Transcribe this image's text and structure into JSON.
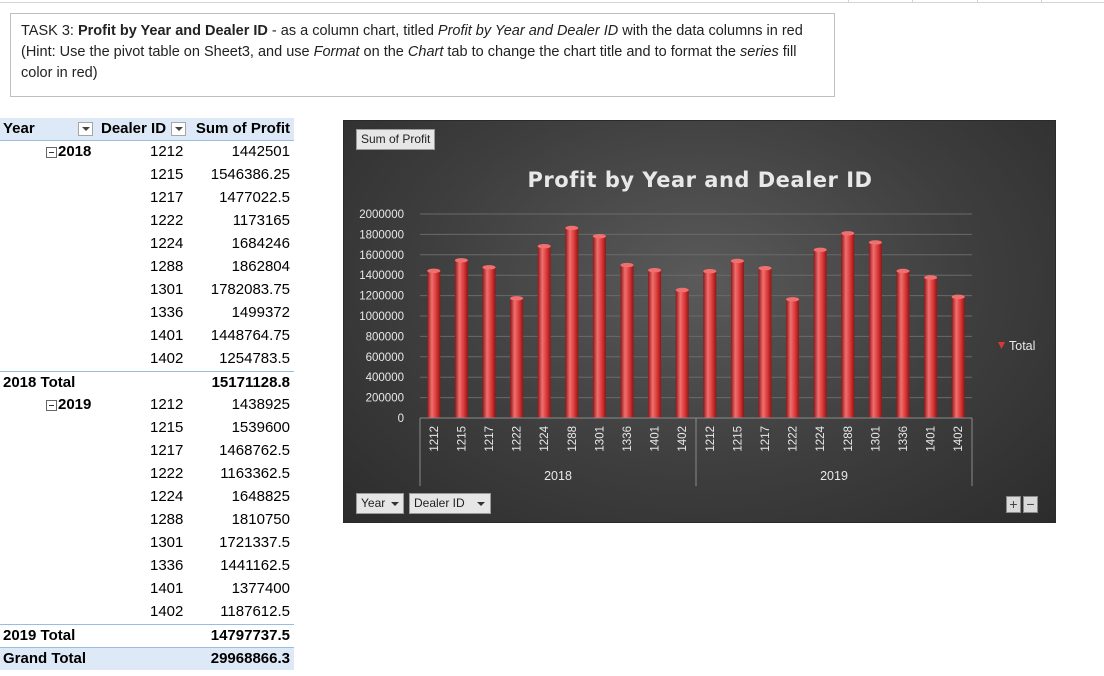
{
  "task": {
    "prefix": "TASK 3: ",
    "bold_title": "Profit by Year and Dealer ID",
    "text1": " - as a column chart, titled ",
    "italic_title": "Profit by Year and Dealer ID",
    "text2": " with the data columns in red (Hint: Use the pivot table on Sheet3, and use ",
    "italic_format": "Format",
    "text3": " on the ",
    "italic_chart": "Chart",
    "text4": " tab to change the chart title and to format the ",
    "italic_series": "series",
    "text5": " fill color in red)"
  },
  "pivot": {
    "headers": {
      "year": "Year",
      "dealer": "Dealer ID",
      "sum": "Sum of Profit"
    },
    "groups": [
      {
        "year": "2018",
        "rows": [
          {
            "id": "1212",
            "val": "1442501"
          },
          {
            "id": "1215",
            "val": "1546386.25"
          },
          {
            "id": "1217",
            "val": "1477022.5"
          },
          {
            "id": "1222",
            "val": "1173165"
          },
          {
            "id": "1224",
            "val": "1684246"
          },
          {
            "id": "1288",
            "val": "1862804"
          },
          {
            "id": "1301",
            "val": "1782083.75"
          },
          {
            "id": "1336",
            "val": "1499372"
          },
          {
            "id": "1401",
            "val": "1448764.75"
          },
          {
            "id": "1402",
            "val": "1254783.5"
          }
        ],
        "total_label": "2018 Total",
        "total_value": "15171128.8"
      },
      {
        "year": "2019",
        "rows": [
          {
            "id": "1212",
            "val": "1438925"
          },
          {
            "id": "1215",
            "val": "1539600"
          },
          {
            "id": "1217",
            "val": "1468762.5"
          },
          {
            "id": "1222",
            "val": "1163362.5"
          },
          {
            "id": "1224",
            "val": "1648825"
          },
          {
            "id": "1288",
            "val": "1810750"
          },
          {
            "id": "1301",
            "val": "1721337.5"
          },
          {
            "id": "1336",
            "val": "1441162.5"
          },
          {
            "id": "1401",
            "val": "1377400"
          },
          {
            "id": "1402",
            "val": "1187612.5"
          }
        ],
        "total_label": "2019 Total",
        "total_value": "14797737.5"
      }
    ],
    "grand_label": "Grand Total",
    "grand_value": "29968866.3"
  },
  "chart": {
    "value_field_button": "Sum of Profit",
    "axis_field_buttons": [
      "Year",
      "Dealer ID"
    ],
    "zoom_plus": "+",
    "zoom_minus": "−",
    "colors": {
      "bar": "#d93636",
      "bar_dark": "#8e1616",
      "bar_light": "#f07070",
      "text": "#e8e8e8",
      "grid": "#6a6a6a"
    }
  },
  "chart_data": {
    "type": "bar",
    "title": "Profit by Year and Dealer ID",
    "ylim": [
      0,
      2000000
    ],
    "yticks": [
      "0",
      "200000",
      "400000",
      "600000",
      "800000",
      "1000000",
      "1200000",
      "1400000",
      "1600000",
      "1800000",
      "2000000"
    ],
    "grid": true,
    "legend_position": "right",
    "groups": [
      {
        "name": "2018",
        "categories": [
          "1212",
          "1215",
          "1217",
          "1222",
          "1224",
          "1288",
          "1301",
          "1336",
          "1401",
          "1402"
        ]
      },
      {
        "name": "2019",
        "categories": [
          "1212",
          "1215",
          "1217",
          "1222",
          "1224",
          "1288",
          "1301",
          "1336",
          "1401",
          "1402"
        ]
      }
    ],
    "series": [
      {
        "name": "Total",
        "values": [
          1442501,
          1546386.25,
          1477022.5,
          1173165,
          1684246,
          1862804,
          1782083.75,
          1499372,
          1448764.75,
          1254783.5,
          1438925,
          1539600,
          1468762.5,
          1163362.5,
          1648825,
          1810750,
          1721337.5,
          1441162.5,
          1377400,
          1187612.5
        ]
      }
    ]
  }
}
